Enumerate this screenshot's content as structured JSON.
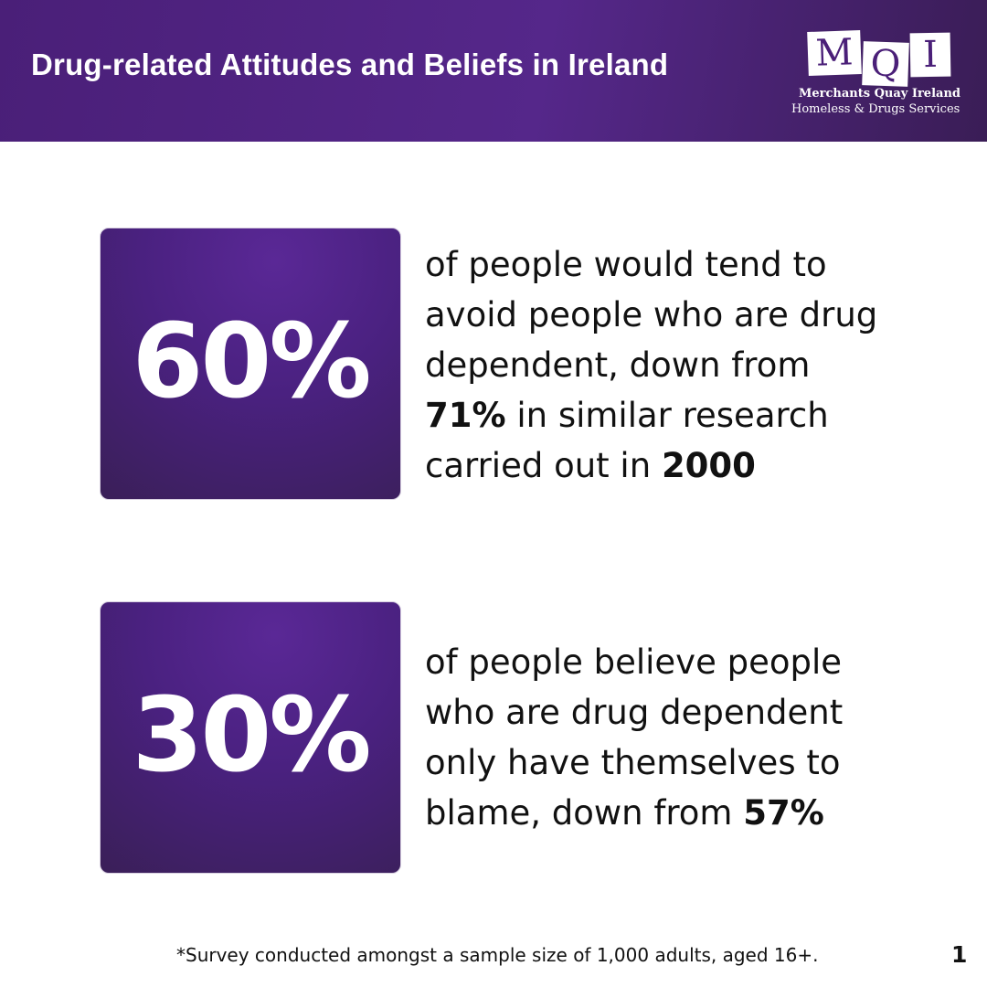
{
  "header": {
    "title": "Drug-related Attitudes and Beliefs in Ireland",
    "background_color": "#4a1f78"
  },
  "logo": {
    "letters": [
      "M",
      "Q",
      "I"
    ],
    "name": "Merchants Quay Ireland",
    "tagline": "Homeless & Drugs Services"
  },
  "stats": [
    {
      "value": "60%",
      "lines": [
        {
          "text": "of people would tend to"
        },
        {
          "text": "avoid people who are drug"
        },
        {
          "text": "dependent, down from"
        },
        {
          "bold": "71%",
          "text": " in similar research"
        },
        {
          "text": "carried out in ",
          "bold_end": "2000"
        }
      ]
    },
    {
      "value": "30%",
      "lines": [
        {
          "text": "of people believe people"
        },
        {
          "text": "who are drug dependent"
        },
        {
          "text": "only have themselves to"
        },
        {
          "text": "blame, down from ",
          "bold_end": "57%"
        }
      ]
    }
  ],
  "footnote": "*Survey conducted amongst a sample size of 1,000 adults, aged 16+.",
  "page_number": "1",
  "colors": {
    "accent_purple": "#4a1f78",
    "text": "#111111",
    "background": "#ffffff"
  }
}
